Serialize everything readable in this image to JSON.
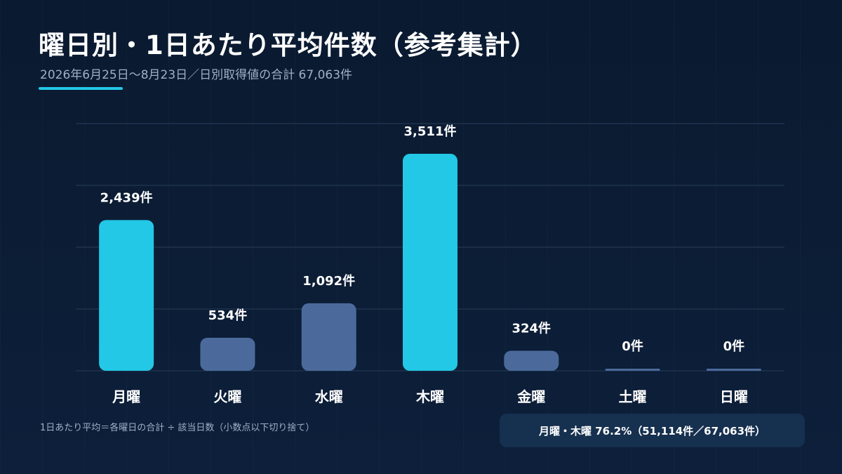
{
  "header": {
    "title": "曜日別・1日あたり平均件数（参考集計）",
    "subtitle": "2026年6月25日〜8月23日／日別取得値の合計 67,063件"
  },
  "footer": {
    "note": "1日あたり平均＝各曜日の合計 ÷ 該当日数（小数点以下切り捨て）",
    "summary": "月曜・木曜 76.2%（51,114件／67,063件）"
  },
  "colors": {
    "highlight": "#22c8e6",
    "normal": "#4b6a9b",
    "background": "#0a1a30",
    "grid": "#2a3d58"
  },
  "chart_data": {
    "type": "bar",
    "title": "曜日別・1日あたり平均件数（参考集計）",
    "categories": [
      "月曜",
      "火曜",
      "水曜",
      "木曜",
      "金曜",
      "土曜",
      "日曜"
    ],
    "values": [
      2439,
      534,
      1092,
      3511,
      324,
      0,
      0
    ],
    "value_labels": [
      "2,439件",
      "534件",
      "1,092件",
      "3,511件",
      "324件",
      "0件",
      "0件"
    ],
    "highlighted": [
      true,
      false,
      false,
      true,
      false,
      false,
      false
    ],
    "ylim": [
      0,
      4000
    ],
    "grid": true,
    "xlabel": "",
    "ylabel": ""
  }
}
